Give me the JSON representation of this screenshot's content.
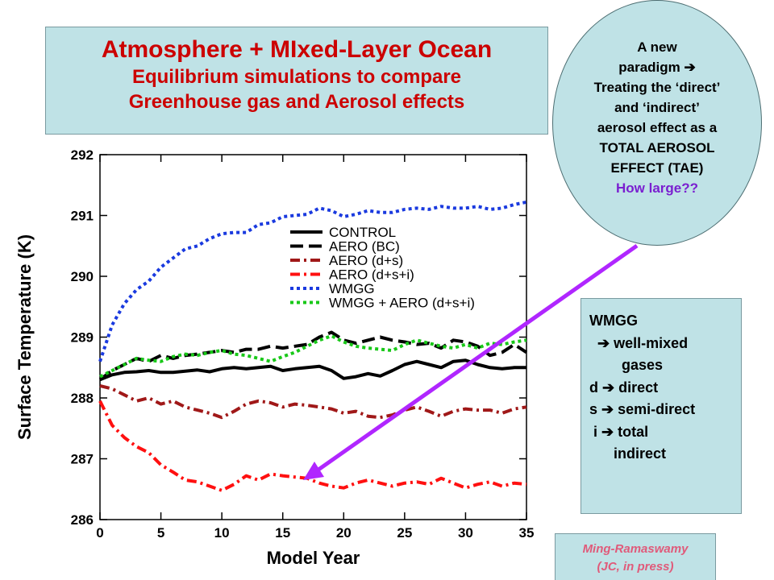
{
  "slide": {
    "title": "Atmosphere + MIxed-Layer Ocean",
    "subtitle_line1": "Equilibrium simulations to compare",
    "subtitle_line2": "Greenhouse gas and Aerosol effects"
  },
  "bubble": {
    "lines": [
      "A new",
      "paradigm ➔",
      "Treating the ‘direct’",
      "and ‘indirect’",
      "aerosol effect as a",
      "TOTAL AEROSOL",
      "EFFECT (TAE)"
    ],
    "question": "How large??",
    "question_color": "#7a1fd0"
  },
  "notes": {
    "lines": [
      "WMGG",
      "  ➔ well-mixed",
      "        gases",
      "",
      "d ➔ direct",
      "s ➔ semi-direct",
      " i ➔ total",
      "      indirect"
    ]
  },
  "credit": {
    "line1": "Ming-Ramaswamy",
    "line2": "(JC, in press)"
  },
  "colors": {
    "box_fill": "#bfe2e6",
    "title_red": "#cc0000",
    "arrow_purple": "#b026ff",
    "credit_pink": "#e05a7a"
  },
  "chart_data": {
    "type": "line",
    "xlabel": "Model Year",
    "ylabel": "Surface Temperature (K)",
    "xlim": [
      0,
      35
    ],
    "ylim": [
      286,
      292
    ],
    "xticks": [
      0,
      5,
      10,
      15,
      20,
      25,
      30,
      35
    ],
    "yticks": [
      286,
      287,
      288,
      289,
      290,
      291,
      292
    ],
    "legend_position": "upper-right inside plot",
    "x": [
      0,
      1,
      2,
      3,
      4,
      5,
      6,
      7,
      8,
      9,
      10,
      11,
      12,
      13,
      14,
      15,
      16,
      17,
      18,
      19,
      20,
      21,
      22,
      23,
      24,
      25,
      26,
      27,
      28,
      29,
      30,
      31,
      32,
      33,
      34,
      35
    ],
    "series": [
      {
        "name": "CONTROL",
        "color": "#000000",
        "style": "solid",
        "values": [
          288.3,
          288.38,
          288.42,
          288.43,
          288.45,
          288.42,
          288.42,
          288.44,
          288.46,
          288.43,
          288.48,
          288.5,
          288.48,
          288.5,
          288.52,
          288.45,
          288.48,
          288.5,
          288.52,
          288.45,
          288.32,
          288.35,
          288.4,
          288.36,
          288.45,
          288.55,
          288.6,
          288.55,
          288.5,
          288.6,
          288.62,
          288.55,
          288.5,
          288.48,
          288.5,
          288.5
        ]
      },
      {
        "name": "AERO (BC)",
        "color": "#000000",
        "style": "longdash",
        "values": [
          288.3,
          288.45,
          288.55,
          288.65,
          288.6,
          288.7,
          288.65,
          288.7,
          288.72,
          288.75,
          288.78,
          288.75,
          288.8,
          288.8,
          288.85,
          288.82,
          288.85,
          288.88,
          289.0,
          289.08,
          288.95,
          288.9,
          288.95,
          289.0,
          288.95,
          288.92,
          288.88,
          288.9,
          288.82,
          288.95,
          288.92,
          288.85,
          288.7,
          288.75,
          288.88,
          288.75
        ]
      },
      {
        "name": "AERO (d+s)",
        "color": "#a01818",
        "style": "dashdot",
        "values": [
          288.2,
          288.15,
          288.05,
          287.95,
          288.0,
          287.9,
          287.95,
          287.85,
          287.8,
          287.75,
          287.68,
          287.78,
          287.9,
          287.95,
          287.92,
          287.85,
          287.9,
          287.88,
          287.85,
          287.82,
          287.75,
          287.78,
          287.7,
          287.68,
          287.72,
          287.8,
          287.85,
          287.78,
          287.7,
          287.78,
          287.82,
          287.8,
          287.8,
          287.75,
          287.82,
          287.85
        ]
      },
      {
        "name": "AERO (d+s+i)",
        "color": "#ff1010",
        "style": "dashdot",
        "values": [
          287.95,
          287.55,
          287.35,
          287.2,
          287.1,
          286.9,
          286.78,
          286.65,
          286.62,
          286.55,
          286.48,
          286.58,
          286.72,
          286.65,
          286.75,
          286.72,
          286.7,
          286.68,
          286.6,
          286.55,
          286.52,
          286.6,
          286.65,
          286.6,
          286.55,
          286.6,
          286.62,
          286.58,
          286.68,
          286.6,
          286.52,
          286.58,
          286.62,
          286.55,
          286.6,
          286.58
        ]
      },
      {
        "name": "WMGG",
        "color": "#1a3adf",
        "style": "dotted",
        "values": [
          288.6,
          289.2,
          289.55,
          289.78,
          289.92,
          290.15,
          290.3,
          290.45,
          290.5,
          290.62,
          290.7,
          290.72,
          290.72,
          290.85,
          290.88,
          290.98,
          291.0,
          291.02,
          291.12,
          291.08,
          290.98,
          291.02,
          291.08,
          291.05,
          291.05,
          291.1,
          291.12,
          291.1,
          291.15,
          291.12,
          291.12,
          291.15,
          291.1,
          291.12,
          291.18,
          291.22
        ]
      },
      {
        "name": "WMGG + AERO (d+s+i)",
        "color": "#18c818",
        "style": "dotted",
        "values": [
          288.35,
          288.45,
          288.55,
          288.65,
          288.62,
          288.6,
          288.68,
          288.72,
          288.7,
          288.75,
          288.78,
          288.72,
          288.7,
          288.65,
          288.6,
          288.68,
          288.75,
          288.85,
          288.95,
          289.02,
          288.92,
          288.85,
          288.82,
          288.8,
          288.78,
          288.88,
          288.95,
          288.9,
          288.85,
          288.82,
          288.88,
          288.82,
          288.9,
          288.88,
          288.92,
          288.95
        ]
      }
    ]
  }
}
